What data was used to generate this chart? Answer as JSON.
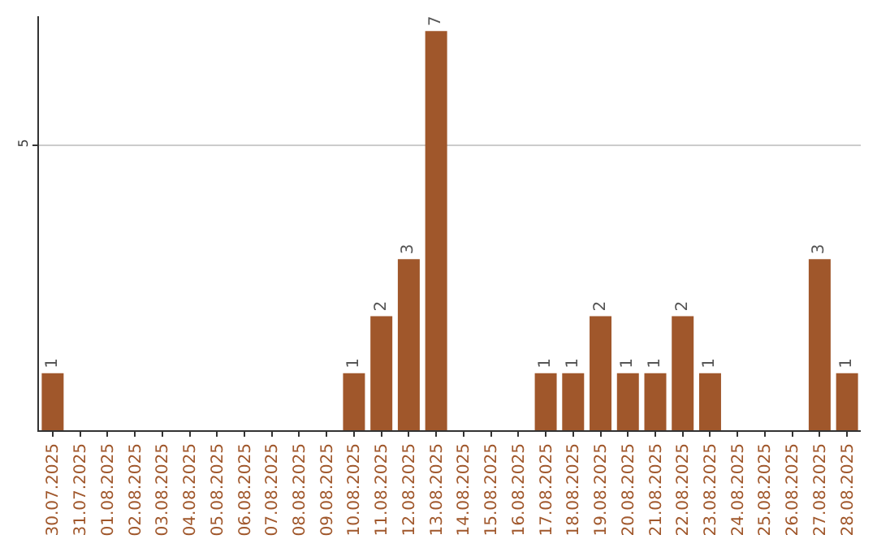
{
  "chart_data": {
    "type": "bar",
    "categories": [
      "30.07.2025",
      "31.07.2025",
      "01.08.2025",
      "02.08.2025",
      "03.08.2025",
      "04.08.2025",
      "05.08.2025",
      "06.08.2025",
      "07.08.2025",
      "08.08.2025",
      "09.08.2025",
      "10.08.2025",
      "11.08.2025",
      "12.08.2025",
      "13.08.2025",
      "14.08.2025",
      "15.08.2025",
      "16.08.2025",
      "17.08.2025",
      "18.08.2025",
      "19.08.2025",
      "20.08.2025",
      "21.08.2025",
      "22.08.2025",
      "23.08.2025",
      "24.08.2025",
      "25.08.2025",
      "26.08.2025",
      "27.08.2025",
      "28.08.2025"
    ],
    "values": [
      1,
      0,
      0,
      0,
      0,
      0,
      0,
      0,
      0,
      0,
      0,
      1,
      2,
      3,
      7,
      0,
      0,
      0,
      1,
      1,
      2,
      1,
      1,
      2,
      1,
      0,
      0,
      0,
      3,
      1
    ],
    "value_labels": [
      "1",
      null,
      null,
      null,
      null,
      null,
      null,
      null,
      null,
      null,
      null,
      "1",
      "2",
      "3",
      "7",
      null,
      null,
      null,
      "1",
      "1",
      "2",
      "1",
      "1",
      "2",
      "1",
      null,
      null,
      null,
      "3",
      "1"
    ],
    "color": "#a0572b",
    "ylim": [
      0,
      7.26
    ],
    "yticks": [
      5
    ],
    "grid": "y"
  }
}
